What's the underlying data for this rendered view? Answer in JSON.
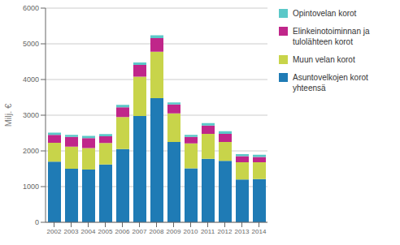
{
  "chart_data": {
    "type": "bar",
    "stacked": true,
    "ylabel": "Milj. €",
    "categories": [
      "2002",
      "2003",
      "2004",
      "2005",
      "2006",
      "2007",
      "2008",
      "2009",
      "2010",
      "2011",
      "2012",
      "2013",
      "2014"
    ],
    "series": [
      {
        "name": "Asuntovelkojen korot\nyhteensä",
        "color": "#1f7bb5",
        "values": [
          1700,
          1500,
          1480,
          1620,
          2050,
          2980,
          3480,
          2250,
          1510,
          1780,
          1720,
          1200,
          1210
        ]
      },
      {
        "name": "Muun velan korot",
        "color": "#c8d44a",
        "values": [
          530,
          620,
          600,
          600,
          900,
          1100,
          1300,
          800,
          700,
          700,
          530,
          480,
          470
        ]
      },
      {
        "name": "Elinkeinotoiminnan ja\ntulolähteen korot",
        "color": "#c0268a",
        "values": [
          220,
          270,
          280,
          190,
          270,
          330,
          380,
          250,
          180,
          230,
          230,
          170,
          150
        ]
      },
      {
        "name": "Opintovelan korot",
        "color": "#5bc8c8",
        "values": [
          60,
          60,
          60,
          60,
          70,
          70,
          80,
          60,
          60,
          70,
          70,
          60,
          60
        ]
      }
    ],
    "ylim": [
      0,
      6000
    ],
    "yticks": [
      0,
      1000,
      2000,
      3000,
      4000,
      5000,
      6000
    ],
    "grid": true,
    "legend": "right"
  }
}
